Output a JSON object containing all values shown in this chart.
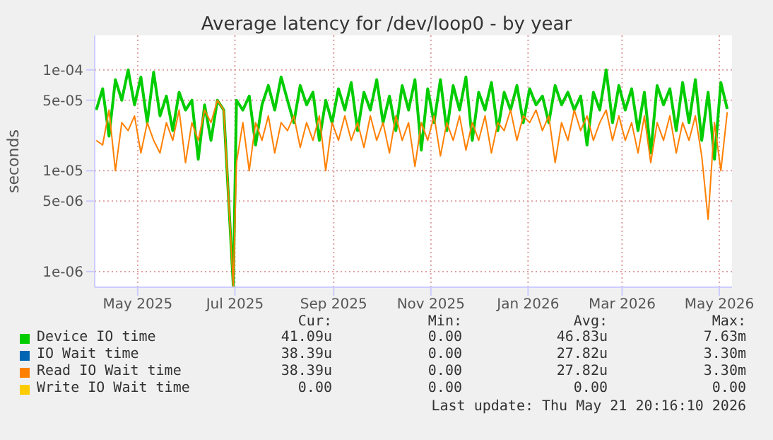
{
  "chart_data": {
    "type": "line",
    "title": "Average latency for /dev/loop0 - by year",
    "ylabel": "seconds",
    "log": "y",
    "grid": true,
    "legend": "bottom",
    "marker": "none",
    "line_style": "solid",
    "ylim": [
      7e-07,
      0.00022
    ],
    "yticks": [
      {
        "value": 1e-06,
        "label": "1e-06"
      },
      {
        "value": 5e-06,
        "label": "5e-06"
      },
      {
        "value": 1e-05,
        "label": "1e-05"
      },
      {
        "value": 5e-05,
        "label": "5e-05"
      },
      {
        "value": 0.0001,
        "label": "1e-04"
      }
    ],
    "xlim": [
      "2025-04-04",
      "2026-05-09"
    ],
    "xticks": [
      {
        "value": "2025-05-01",
        "label": "May 2025"
      },
      {
        "value": "2025-07-01",
        "label": "Jul 2025"
      },
      {
        "value": "2025-09-01",
        "label": "Sep 2025"
      },
      {
        "value": "2025-11-01",
        "label": "Nov 2025"
      },
      {
        "value": "2026-01-01",
        "label": "Jan 2026"
      },
      {
        "value": "2026-03-01",
        "label": "Mar 2026"
      },
      {
        "value": "2026-05-01",
        "label": "May 2026"
      }
    ],
    "x": [
      "2025-04-05",
      "2025-04-09",
      "2025-04-13",
      "2025-04-17",
      "2025-04-21",
      "2025-04-25",
      "2025-04-29",
      "2025-05-03",
      "2025-05-07",
      "2025-05-11",
      "2025-05-15",
      "2025-05-19",
      "2025-05-23",
      "2025-05-27",
      "2025-05-31",
      "2025-06-04",
      "2025-06-08",
      "2025-06-12",
      "2025-06-16",
      "2025-06-20",
      "2025-06-24",
      "2025-06-30",
      "2025-07-02",
      "2025-07-06",
      "2025-07-10",
      "2025-07-14",
      "2025-07-18",
      "2025-07-22",
      "2025-07-26",
      "2025-07-30",
      "2025-08-03",
      "2025-08-07",
      "2025-08-11",
      "2025-08-15",
      "2025-08-19",
      "2025-08-23",
      "2025-08-27",
      "2025-08-31",
      "2025-09-04",
      "2025-09-08",
      "2025-09-12",
      "2025-09-16",
      "2025-09-20",
      "2025-09-24",
      "2025-09-28",
      "2025-10-02",
      "2025-10-06",
      "2025-10-10",
      "2025-10-14",
      "2025-10-18",
      "2025-10-22",
      "2025-10-26",
      "2025-10-30",
      "2025-11-03",
      "2025-11-07",
      "2025-11-11",
      "2025-11-15",
      "2025-11-19",
      "2025-11-23",
      "2025-11-27",
      "2025-12-01",
      "2025-12-05",
      "2025-12-09",
      "2025-12-13",
      "2025-12-17",
      "2025-12-21",
      "2025-12-25",
      "2025-12-29",
      "2026-01-02",
      "2026-01-06",
      "2026-01-10",
      "2026-01-14",
      "2026-01-18",
      "2026-01-22",
      "2026-01-26",
      "2026-01-30",
      "2026-02-03",
      "2026-02-07",
      "2026-02-11",
      "2026-02-15",
      "2026-02-19",
      "2026-02-23",
      "2026-02-27",
      "2026-03-03",
      "2026-03-07",
      "2026-03-11",
      "2026-03-15",
      "2026-03-19",
      "2026-03-23",
      "2026-03-27",
      "2026-03-31",
      "2026-04-04",
      "2026-04-08",
      "2026-04-12",
      "2026-04-16",
      "2026-04-20",
      "2026-04-24",
      "2026-04-28",
      "2026-05-02",
      "2026-05-06"
    ],
    "series": [
      {
        "name": "Device IO time",
        "color": "#00cc00",
        "values": [
          4e-05,
          6.5e-05,
          2.2e-05,
          8e-05,
          5e-05,
          0.0001,
          4.5e-05,
          8.5e-05,
          3e-05,
          9.5e-05,
          3.5e-05,
          5.5e-05,
          2.5e-05,
          6e-05,
          4e-05,
          5e-05,
          1.3e-05,
          4.5e-05,
          2e-05,
          5e-05,
          4e-05,
          7.2e-07,
          5e-05,
          4e-05,
          5.5e-05,
          1.8e-05,
          4.5e-05,
          7e-05,
          4e-05,
          8.5e-05,
          5e-05,
          3e-05,
          7e-05,
          4.5e-05,
          6e-05,
          2e-05,
          5e-05,
          3e-05,
          6.5e-05,
          4e-05,
          7.5e-05,
          2.5e-05,
          6e-05,
          4e-05,
          8e-05,
          3e-05,
          5.5e-05,
          2.5e-05,
          7e-05,
          4e-05,
          8e-05,
          1.6e-05,
          6.5e-05,
          3e-05,
          8e-05,
          2.5e-05,
          7e-05,
          4e-05,
          8.5e-05,
          2e-05,
          6e-05,
          4e-05,
          7.5e-05,
          2.5e-05,
          6e-05,
          4e-05,
          7e-05,
          3e-05,
          6.5e-05,
          4.5e-05,
          5.5e-05,
          3e-05,
          7e-05,
          4.5e-05,
          6e-05,
          4e-05,
          5.5e-05,
          1.8e-05,
          6e-05,
          4e-05,
          0.0001,
          3e-05,
          7e-05,
          4e-05,
          6.5e-05,
          2.5e-05,
          6e-05,
          1.5e-05,
          7e-05,
          4.5e-05,
          6.5e-05,
          2.5e-05,
          7.5e-05,
          3e-05,
          8e-05,
          2e-05,
          6e-05,
          1.3e-05,
          7.5e-05,
          4.1e-05
        ]
      },
      {
        "name": "IO Wait time",
        "color": "#0066b3",
        "values": [
          null,
          null,
          null,
          null,
          null,
          null,
          null,
          null,
          null,
          null,
          null,
          null,
          null,
          null,
          null,
          null,
          null,
          null,
          null,
          null,
          null,
          null,
          null,
          null,
          null,
          null,
          null,
          null,
          null,
          null,
          null,
          null,
          null,
          null,
          null,
          null,
          null,
          null,
          null,
          null,
          null,
          null,
          null,
          null,
          null,
          null,
          null,
          null,
          null,
          null,
          null,
          null,
          null,
          null,
          null,
          null,
          null,
          null,
          null,
          null,
          null,
          null,
          null,
          null,
          null,
          null,
          null,
          null,
          null,
          null,
          null,
          null,
          null,
          null,
          null,
          null,
          null,
          null,
          null,
          null,
          null,
          null,
          null,
          null,
          null,
          null,
          null,
          null,
          null,
          null,
          null,
          null,
          null,
          null,
          null,
          null,
          null,
          null,
          null,
          null
        ]
      },
      {
        "name": "Read IO Wait time",
        "color": "#ff8000",
        "values": [
          2e-05,
          1.8e-05,
          4e-05,
          1e-05,
          3e-05,
          2.5e-05,
          3.5e-05,
          1.5e-05,
          3e-05,
          2e-05,
          1.5e-05,
          3e-05,
          2e-05,
          4e-05,
          1.2e-05,
          3e-05,
          2e-05,
          4e-05,
          3e-05,
          5e-05,
          4e-05,
          7.2e-07,
          1.2e-05,
          3e-05,
          1e-05,
          3e-05,
          2e-05,
          3.5e-05,
          1.5e-05,
          3e-05,
          2.5e-05,
          3.5e-05,
          1.7e-05,
          3e-05,
          2e-05,
          3.5e-05,
          1e-05,
          3e-05,
          2e-05,
          3.5e-05,
          2e-05,
          3e-05,
          1.7e-05,
          3.5e-05,
          2e-05,
          3e-05,
          1.5e-05,
          3.5e-05,
          2e-05,
          3e-05,
          1.1e-05,
          3e-05,
          2e-05,
          3.5e-05,
          1.4e-05,
          3e-05,
          2e-05,
          3.5e-05,
          1.6e-05,
          3e-05,
          2e-05,
          3.5e-05,
          1.5e-05,
          3e-05,
          2.5e-05,
          4e-05,
          2e-05,
          3.5e-05,
          3e-05,
          4e-05,
          2.5e-05,
          3.5e-05,
          1.2e-05,
          3e-05,
          2e-05,
          4e-05,
          2.5e-05,
          3.5e-05,
          2e-05,
          3e-05,
          4e-05,
          2e-05,
          3.5e-05,
          2e-05,
          3e-05,
          1.5e-05,
          3.5e-05,
          1.2e-05,
          3e-05,
          2e-05,
          3.5e-05,
          1.5e-05,
          3e-05,
          2e-05,
          3.5e-05,
          1.4e-05,
          3.3e-06,
          3e-05,
          1e-05,
          3.8e-05
        ]
      },
      {
        "name": "Write IO Wait time",
        "color": "#ffcc00",
        "values": [
          null,
          null,
          null,
          null,
          null,
          null,
          null,
          null,
          null,
          null,
          null,
          null,
          null,
          null,
          null,
          null,
          null,
          null,
          null,
          null,
          null,
          null,
          null,
          null,
          null,
          null,
          null,
          null,
          null,
          null,
          null,
          null,
          null,
          null,
          null,
          null,
          null,
          null,
          null,
          null,
          null,
          null,
          null,
          null,
          null,
          null,
          null,
          null,
          null,
          null,
          null,
          null,
          null,
          null,
          null,
          null,
          null,
          null,
          null,
          null,
          null,
          null,
          null,
          null,
          null,
          null,
          null,
          null,
          null,
          null,
          null,
          null,
          null,
          null,
          null,
          null,
          null,
          null,
          null,
          null,
          null,
          null,
          null,
          null,
          null,
          null,
          null,
          null,
          null,
          null,
          null,
          null,
          null,
          null,
          null,
          null,
          null,
          null,
          null,
          null
        ]
      }
    ],
    "annotations": [
      "Cur:",
      "Min:",
      "Avg:",
      "Max:",
      "41.09u",
      "0.00",
      "46.83u",
      "7.63m",
      "38.39u",
      "0.00",
      "27.82u",
      "3.30m",
      "38.39u",
      "0.00",
      "27.82u",
      "3.30m",
      "0.00",
      "0.00",
      "0.00",
      "0.00",
      "Last update: Thu May 21 20:16:10 2026"
    ]
  }
}
